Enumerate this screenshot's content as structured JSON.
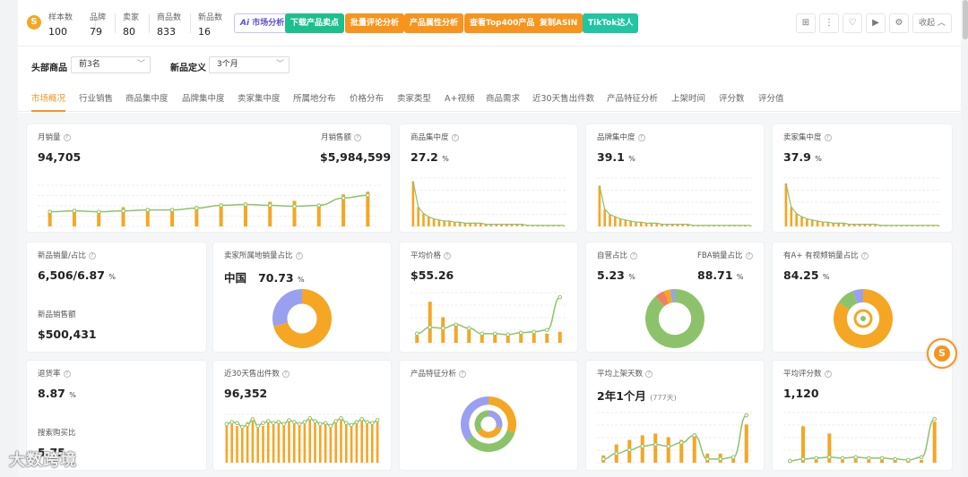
{
  "topbar": {
    "stats": [
      {
        "label": "样本数",
        "value": "100"
      },
      {
        "label": "品牌",
        "value": "79"
      },
      {
        "label": "卖家",
        "value": "80"
      },
      {
        "label": "商品数",
        "value": "833"
      },
      {
        "label": "新品数",
        "value": "16"
      }
    ],
    "buttons": [
      "市场分析",
      "下载产品卖点",
      "批量评论分析",
      "产品属性分析",
      "查看Top400产品",
      "复制ASIN",
      "TikTok达人"
    ],
    "ai_badge": "Ai",
    "collapse_label": "收起"
  },
  "filters": {
    "head_label": "头部商品",
    "head_value": "前3名",
    "new_label": "新品定义",
    "new_value": "3个月"
  },
  "tabs": [
    "市场概况",
    "行业销售",
    "商品集中度",
    "品牌集中度",
    "卖家集中度",
    "所属地分布",
    "价格分布",
    "卖家类型",
    "A+视频",
    "商品需求",
    "近30天售出件数",
    "产品特征分析",
    "上架时间",
    "评分数",
    "评分值"
  ],
  "cards": {
    "monthly_sales": {
      "label": "月销量",
      "value": "94,705"
    },
    "monthly_revenue": {
      "label": "月销售额",
      "value": "$5,984,599"
    },
    "product_conc": {
      "label": "商品集中度",
      "value": "27.2",
      "unit": "%"
    },
    "brand_conc": {
      "label": "品牌集中度",
      "value": "39.1",
      "unit": "%"
    },
    "seller_conc": {
      "label": "卖家集中度",
      "value": "37.9",
      "unit": "%"
    },
    "new_sales": {
      "label": "新品销量/占比",
      "value": "6,506/6.87",
      "unit": "%",
      "label2": "新品销售额",
      "value2": "$500,431"
    },
    "seller_origin": {
      "label": "卖家所属地销量占比",
      "country": "中国",
      "value": "70.73",
      "unit": "%"
    },
    "avg_price": {
      "label": "平均价格",
      "value": "$55.26"
    },
    "self_op": {
      "label": "自营占比",
      "value": "5.23",
      "unit": "%",
      "label2": "FBA销量占比",
      "value2": "88.71",
      "unit2": "%"
    },
    "aplus": {
      "label": "有A+ 有视频销量占比",
      "value": "84.25",
      "unit": "%"
    },
    "return_rate": {
      "label": "退货率",
      "value": "8.87",
      "unit": "%",
      "label2": "搜索购买比",
      "value2": "5.75"
    },
    "sold30": {
      "label": "近30天售出件数",
      "value": "96,352"
    },
    "features": {
      "label": "产品特征分析"
    },
    "avg_listing": {
      "label": "平均上架天数",
      "value": "2年1个月",
      "sub": "(777天)"
    },
    "avg_rating": {
      "label": "平均评分数",
      "value": "1,120"
    }
  },
  "watermark": "大数跨境",
  "colors": {
    "orange": "#f7941d",
    "bar": "#f5a623",
    "line": "#8cc36a",
    "purple": "#9aa0f0",
    "coral": "#f08060"
  },
  "chart_data": [
    {
      "type": "bar",
      "id": "monthly",
      "values": [
        18,
        19,
        17,
        21,
        20,
        20,
        22,
        25,
        26,
        27,
        28,
        24,
        35,
        38
      ],
      "line": [
        16,
        17,
        16,
        17,
        18,
        18,
        20,
        23,
        24,
        23,
        22,
        23,
        31,
        34
      ],
      "ylim": [
        0,
        45
      ]
    },
    {
      "type": "bar",
      "id": "product_conc",
      "values": [
        42,
        18,
        12,
        9,
        7,
        6,
        5,
        5,
        4,
        4,
        3,
        3,
        3,
        3,
        2,
        2,
        2,
        2,
        2,
        2,
        2,
        2,
        1,
        1,
        1,
        1,
        1,
        1,
        1,
        1
      ],
      "ylim": [
        0,
        45
      ]
    },
    {
      "type": "bar",
      "id": "brand_conc",
      "values": [
        38,
        16,
        11,
        9,
        7,
        6,
        5,
        4,
        4,
        3,
        3,
        3,
        2,
        2,
        2,
        2,
        2,
        2,
        1,
        1,
        1,
        1,
        1,
        1,
        1,
        1,
        1,
        1,
        1,
        1
      ],
      "ylim": [
        0,
        45
      ]
    },
    {
      "type": "bar",
      "id": "seller_conc",
      "values": [
        40,
        18,
        12,
        9,
        7,
        6,
        5,
        4,
        4,
        3,
        3,
        3,
        2,
        2,
        2,
        2,
        2,
        2,
        1,
        1,
        1,
        1,
        1,
        1,
        1,
        1,
        1,
        1,
        1,
        1
      ],
      "ylim": [
        0,
        45
      ]
    },
    {
      "type": "bar",
      "id": "avg_price",
      "values": [
        8,
        45,
        28,
        20,
        14,
        10,
        10,
        8,
        10,
        10,
        10,
        12
      ],
      "line": [
        10,
        17,
        16,
        20,
        16,
        10,
        10,
        9,
        11,
        12,
        14,
        50
      ],
      "ylim": [
        0,
        55
      ]
    },
    {
      "type": "bar",
      "id": "sold30",
      "values": [
        38,
        40,
        38,
        37,
        42,
        44,
        36,
        38,
        42,
        40,
        41,
        38,
        44,
        42,
        38,
        40,
        44,
        41,
        38,
        40,
        37,
        42,
        44,
        40,
        38,
        41,
        44,
        42,
        40,
        43
      ],
      "line": [
        40,
        42,
        41,
        37,
        39,
        45,
        38,
        41,
        43,
        41,
        42,
        40,
        44,
        42,
        40,
        42,
        46,
        43,
        40,
        41,
        38,
        43,
        46,
        41,
        39,
        42,
        45,
        42,
        41,
        44
      ],
      "ylim": [
        0,
        50
      ]
    },
    {
      "type": "bar",
      "id": "avg_listing",
      "values": [
        8,
        20,
        25,
        30,
        32,
        28,
        25,
        32,
        10,
        10,
        5,
        42
      ],
      "line": [
        4,
        10,
        14,
        18,
        20,
        18,
        22,
        30,
        4,
        4,
        6,
        52
      ],
      "ylim": [
        0,
        55
      ]
    },
    {
      "type": "bar",
      "id": "avg_rating",
      "values": [
        2,
        40,
        3,
        32,
        3,
        5,
        3,
        3,
        3,
        3,
        3,
        45
      ],
      "line": [
        2,
        4,
        5,
        6,
        5,
        6,
        5,
        5,
        4,
        3,
        6,
        48
      ],
      "ylim": [
        0,
        55
      ]
    },
    {
      "type": "pie",
      "id": "seller_origin",
      "slices": [
        {
          "name": "中国",
          "value": 70.73
        },
        {
          "name": "other",
          "value": 29.27
        }
      ]
    },
    {
      "type": "pie",
      "id": "self_op",
      "slices": [
        {
          "name": "a",
          "value": 88.71
        },
        {
          "name": "b",
          "value": 5.23
        },
        {
          "name": "c",
          "value": 3.5
        },
        {
          "name": "d",
          "value": 2.56
        }
      ]
    },
    {
      "type": "pie",
      "id": "aplus",
      "slices": [
        {
          "name": "a",
          "value": 84.25
        },
        {
          "name": "b",
          "value": 10
        },
        {
          "name": "c",
          "value": 5.75
        }
      ]
    },
    {
      "type": "pie",
      "id": "features",
      "slices": [
        {
          "name": "a",
          "value": 30
        },
        {
          "name": "b",
          "value": 35
        },
        {
          "name": "c",
          "value": 35
        }
      ]
    }
  ]
}
